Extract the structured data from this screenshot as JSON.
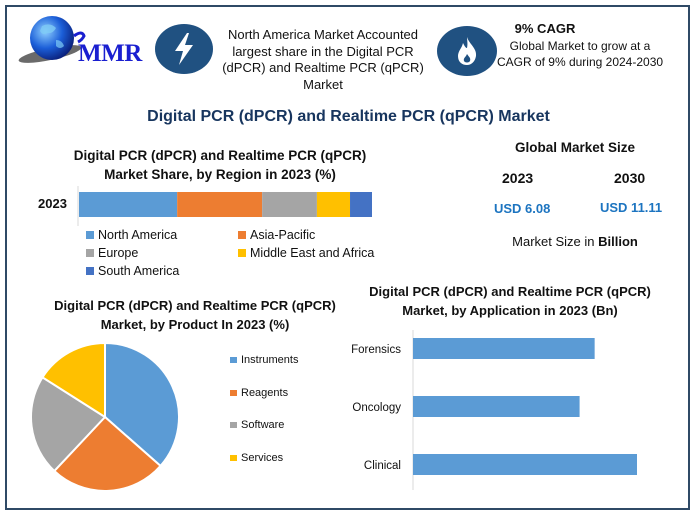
{
  "brand": {
    "logo_text": "MMR"
  },
  "header": {
    "info_icon": "lightning-bolt-icon",
    "info_text": "North America Market Accounted largest share in the Digital PCR (dPCR) and Realtime PCR (qPCR) Market",
    "cagr_icon": "flame-icon",
    "cagr_title": "9% CAGR",
    "cagr_text": "Global Market to grow at a CAGR of 9% during 2024-2030"
  },
  "main_title": "Digital PCR (dPCR) and Realtime PCR (qPCR) Market",
  "market_size": {
    "title": "Global Market Size",
    "year1": "2023",
    "year2": "2030",
    "value1": "USD 6.08",
    "value2": "USD 11.11",
    "note_prefix": "Market Size in ",
    "note_bold": "Billion"
  },
  "colors": {
    "frame": "#2f4a66",
    "icon_bg": "#205181",
    "title_navy": "#17355e",
    "usd_blue": "#1c74c0"
  },
  "chart_data": [
    {
      "type": "bar",
      "orientation": "horizontal-stacked-100",
      "title": "Digital PCR (dPCR) and Realtime PCR (qPCR) Market Share, by Region in 2023 (%)",
      "categories": [
        "2023"
      ],
      "series": [
        {
          "name": "North America",
          "values": [
            33.5
          ],
          "color": "#5b9bd5"
        },
        {
          "name": "Asia-Pacific",
          "values": [
            29.0
          ],
          "color": "#ed7d31"
        },
        {
          "name": "Europe",
          "values": [
            18.7
          ],
          "color": "#a5a5a5"
        },
        {
          "name": "Middle East and Africa",
          "values": [
            11.3
          ],
          "color": "#ffc000"
        },
        {
          "name": "South America",
          "values": [
            7.5
          ],
          "color": "#4472c4"
        }
      ],
      "legend": "bottom",
      "xlim": [
        0,
        100
      ]
    },
    {
      "type": "pie",
      "title": "Digital PCR (dPCR) and Realtime PCR (qPCR) Market, by Product In 2023 (%)",
      "labels": [
        "Instruments",
        "Reagents",
        "Software",
        "Services"
      ],
      "values": [
        36.5,
        25.5,
        22.0,
        16.0
      ],
      "colors": [
        "#5b9bd5",
        "#ed7d31",
        "#a5a5a5",
        "#ffc000"
      ],
      "legend": "right"
    },
    {
      "type": "bar",
      "orientation": "horizontal",
      "title": "Digital PCR (dPCR) and Realtime PCR (qPCR) Market, by Application in 2023 (Bn)",
      "categories": [
        "Forensics",
        "Oncology",
        "Clinical"
      ],
      "values": [
        1.93,
        1.77,
        2.38
      ],
      "color": "#5b9bd5",
      "xlim": [
        0,
        2.5
      ]
    }
  ]
}
